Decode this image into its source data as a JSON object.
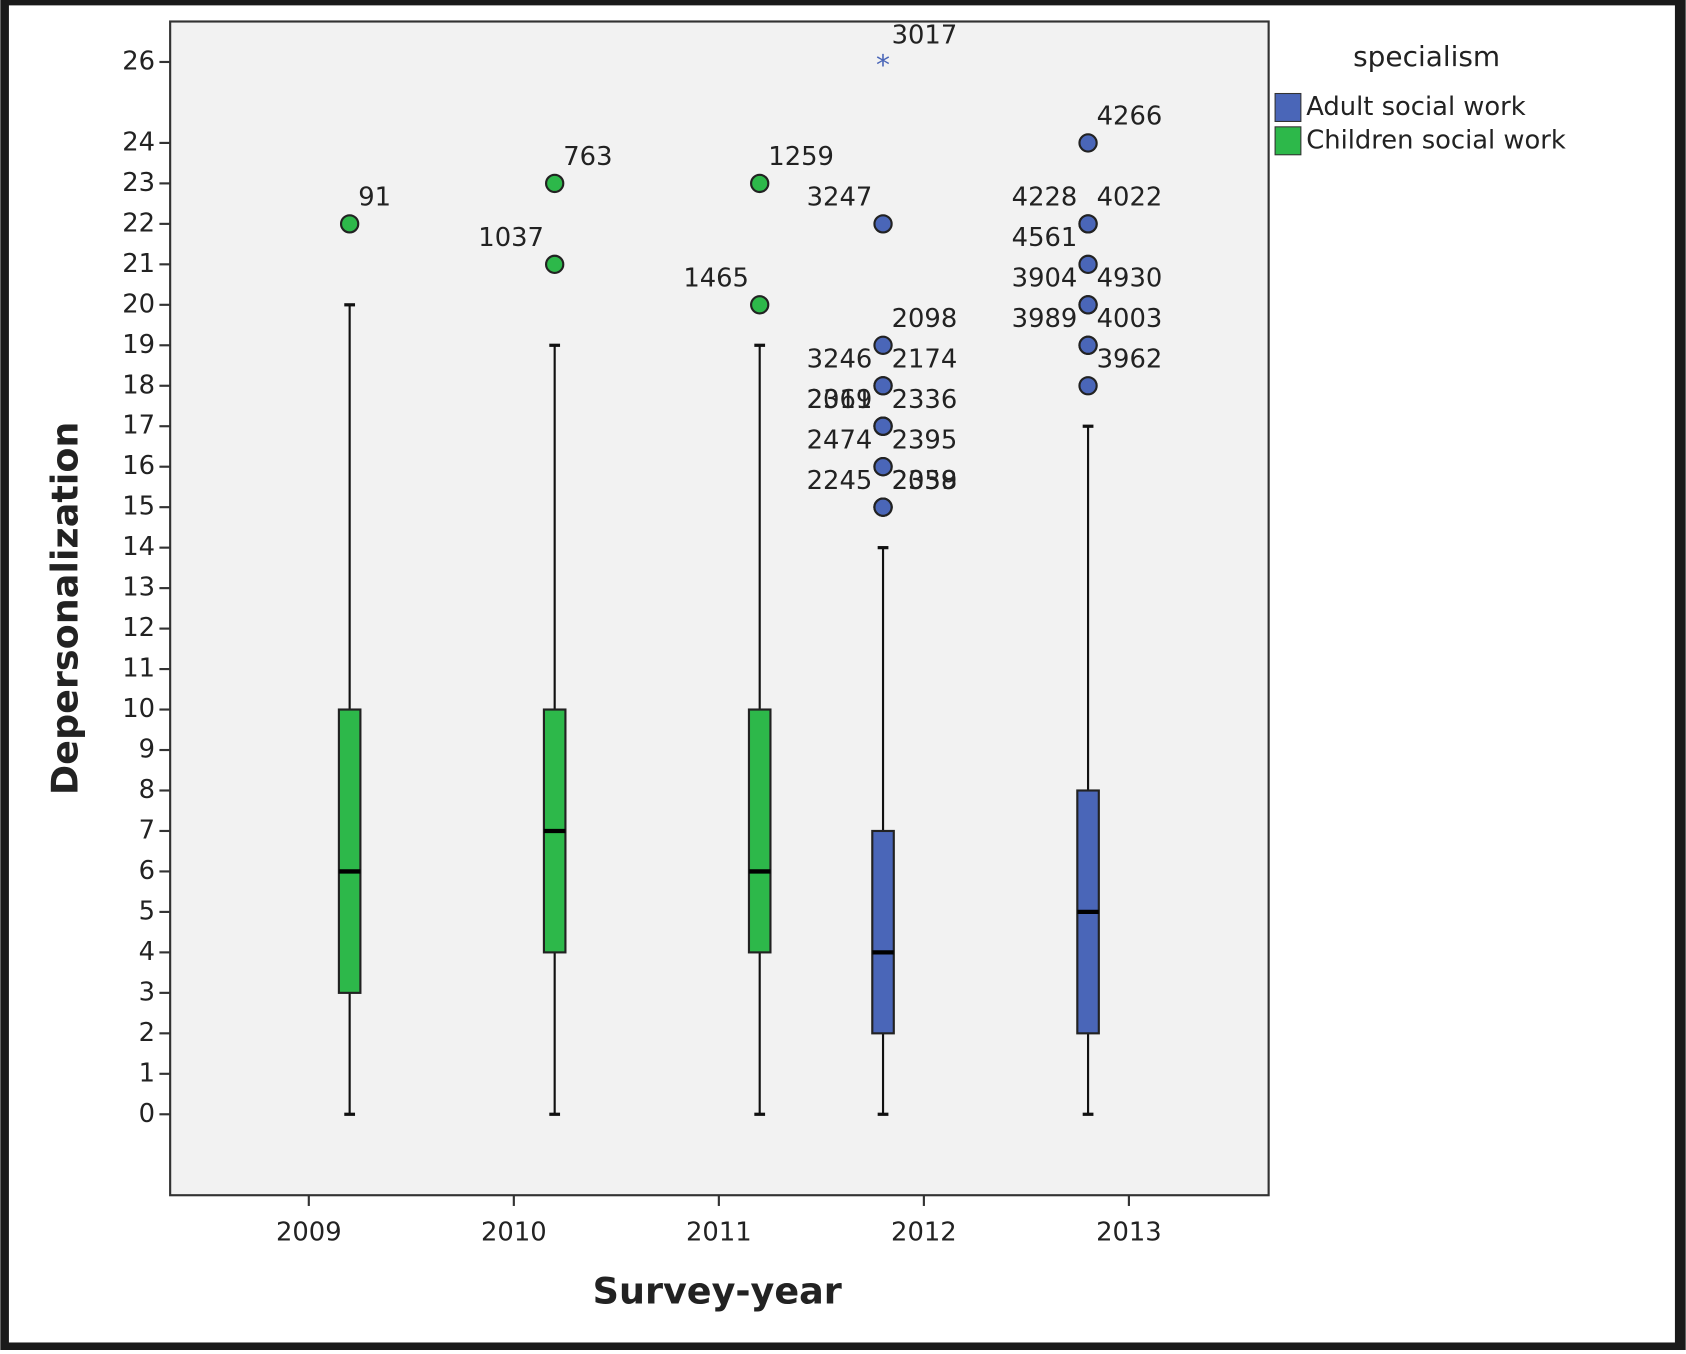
{
  "chart_data": {
    "type": "boxplot",
    "x_label": "Survey-year",
    "y_label": "Depersonalization",
    "legend_title": "specialism",
    "legend_position": "upper right outside",
    "categories": [
      "2009",
      "2010",
      "2011",
      "2012",
      "2013"
    ],
    "series": [
      {
        "name": "Adult social work",
        "color": "#4a66b8"
      },
      {
        "name": "Children social work",
        "color": "#2db84a"
      }
    ],
    "ylim": [
      -2,
      27
    ],
    "yticks": [
      0,
      1,
      2,
      3,
      4,
      5,
      6,
      7,
      8,
      9,
      10,
      11,
      12,
      13,
      14,
      15,
      16,
      17,
      18,
      19,
      20,
      21,
      22,
      23,
      24,
      26
    ],
    "boxes": [
      {
        "category": 0,
        "series": 1,
        "min": 0,
        "q1": 3,
        "median": 6,
        "q3": 10,
        "max": 20,
        "outliers": [
          {
            "value": 22,
            "label": "91"
          }
        ]
      },
      {
        "category": 1,
        "series": 1,
        "min": 0,
        "q1": 4,
        "median": 7,
        "q3": 10,
        "max": 19,
        "outliers": [
          {
            "value": 23,
            "label": "763"
          },
          {
            "value": 21,
            "label": "1037"
          }
        ]
      },
      {
        "category": 2,
        "series": 1,
        "min": 0,
        "q1": 4,
        "median": 6,
        "q3": 10,
        "max": 19,
        "outliers": [
          {
            "value": 23,
            "label": "1259"
          },
          {
            "value": 20,
            "label": "1465"
          }
        ]
      },
      {
        "category": 3,
        "series": 0,
        "min": 0,
        "q1": 2,
        "median": 4,
        "q3": 7,
        "max": 14,
        "outliers": [
          {
            "value": 26,
            "label": "3017",
            "extreme": true
          },
          {
            "value": 22,
            "label": "3247"
          },
          {
            "value": 19,
            "label": "2098"
          },
          {
            "value": 18,
            "label": "3246"
          },
          {
            "value": 18,
            "label": "2174"
          },
          {
            "value": 17,
            "label": "2311"
          },
          {
            "value": 17,
            "label": "2336"
          },
          {
            "value": 17,
            "label": "2069"
          },
          {
            "value": 16,
            "label": "2395"
          },
          {
            "value": 16,
            "label": "2474"
          },
          {
            "value": 15,
            "label": "2059"
          },
          {
            "value": 15,
            "label": "2245"
          },
          {
            "value": 15,
            "label": "2338"
          }
        ]
      },
      {
        "category": 4,
        "series": 0,
        "min": 0,
        "q1": 2,
        "median": 5,
        "q3": 8,
        "max": 17,
        "outliers": [
          {
            "value": 24,
            "label": "4266"
          },
          {
            "value": 22,
            "label": "4228"
          },
          {
            "value": 22,
            "label": "4022"
          },
          {
            "value": 21,
            "label": "4561"
          },
          {
            "value": 20,
            "label": "4930"
          },
          {
            "value": 20,
            "label": "3904"
          },
          {
            "value": 19,
            "label": "4003"
          },
          {
            "value": 19,
            "label": "3989"
          },
          {
            "value": 18,
            "label": "3962"
          }
        ]
      }
    ]
  }
}
